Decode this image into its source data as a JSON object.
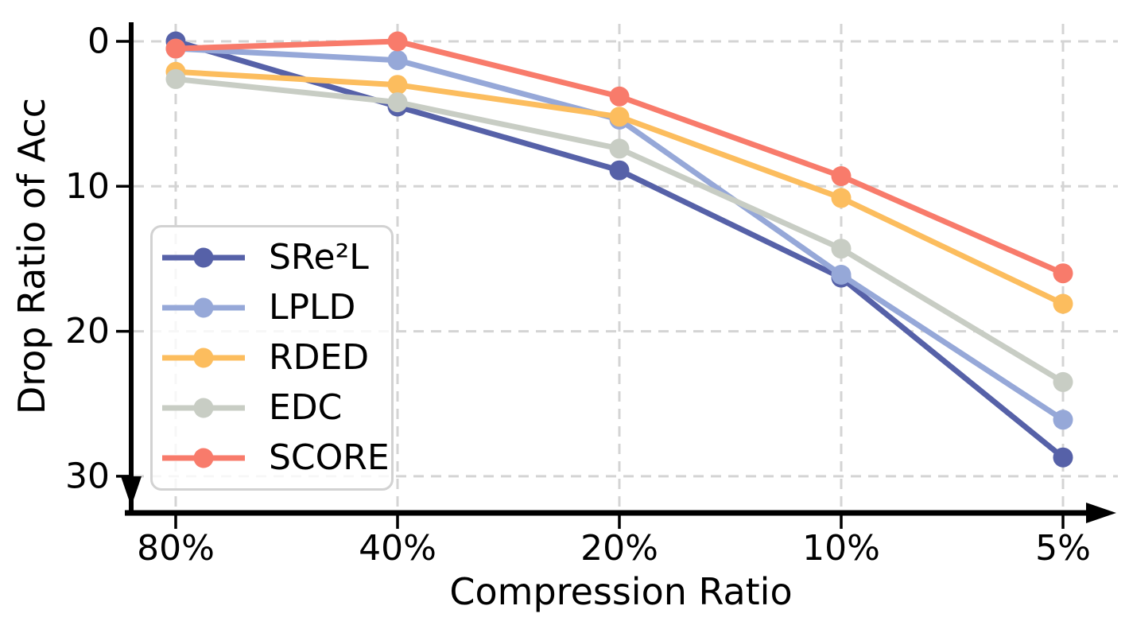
{
  "chart_data": {
    "type": "line",
    "title": "",
    "xlabel": "Compression Ratio",
    "ylabel": "Drop Ratio of Acc",
    "categories": [
      "80%",
      "40%",
      "20%",
      "10%",
      "5%"
    ],
    "y_ticks": [
      "0",
      "10",
      "20",
      "30"
    ],
    "y_tick_values": [
      0,
      10,
      20,
      30
    ],
    "y_axis_inverted": true,
    "ylim_shown": [
      -1.3,
      32.5
    ],
    "grid": {
      "visible": true,
      "style": "dashed",
      "color": "#d4d4d4"
    },
    "axis_color": "#000000",
    "marker": "circle",
    "legend_position": "center-left-inside",
    "series": [
      {
        "name": "SRe²L",
        "color": "#5661a8",
        "values": [
          0.0,
          4.5,
          8.9,
          16.3,
          28.7
        ]
      },
      {
        "name": "LPLD",
        "color": "#96a8d8",
        "values": [
          0.5,
          1.3,
          5.4,
          16.1,
          26.1
        ]
      },
      {
        "name": "RDED",
        "color": "#fcbd5e",
        "values": [
          2.1,
          3.0,
          5.2,
          10.8,
          18.1
        ]
      },
      {
        "name": "EDC",
        "color": "#c8cdc4",
        "values": [
          2.6,
          4.2,
          7.4,
          14.3,
          23.5
        ]
      },
      {
        "name": "SCORE",
        "color": "#f87b6b",
        "values": [
          0.5,
          0.0,
          3.8,
          9.3,
          16.0
        ]
      }
    ]
  }
}
